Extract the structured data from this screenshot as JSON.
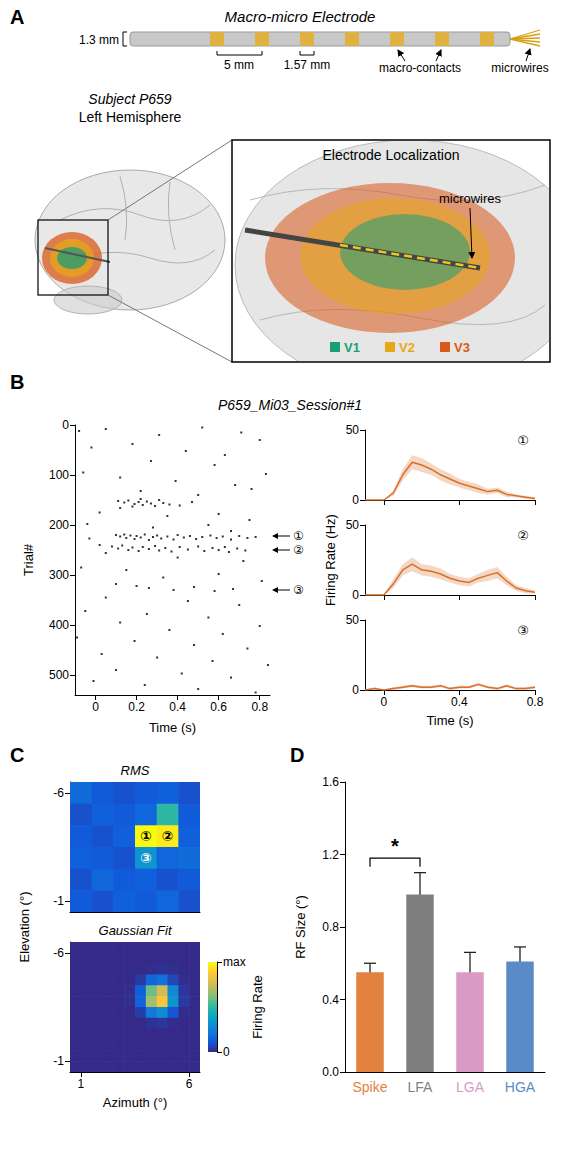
{
  "diagram": {
    "panel": "A",
    "electrode": {
      "title": "Macro-micro Electrode",
      "diameter": "1.3 mm",
      "spacing": "5 mm",
      "contact_length": "1.57 mm",
      "contacts_label": "macro-contacts",
      "tip_label": "microwires"
    },
    "brain": {
      "subject": "Subject P659",
      "hemisphere": "Left Hemisphere"
    },
    "localization": {
      "title": "Electrode Localization",
      "tip_label": "microwires",
      "areas": [
        {
          "name": "V1",
          "color": "#1b9e77"
        },
        {
          "name": "V2",
          "color": "#e6a817"
        },
        {
          "name": "V3",
          "color": "#d9581a"
        }
      ]
    }
  },
  "chart_data": [
    {
      "panel": "B",
      "type": "scatter",
      "title": "P659_Mi03_Session#1",
      "x_label": "Time (s)",
      "y_label": "Trial#",
      "xlim": [
        -0.1,
        0.85
      ],
      "xticks": [
        0,
        0.2,
        0.4,
        0.6,
        0.8
      ],
      "ylim": [
        0,
        540
      ],
      "yticks": [
        0,
        100,
        200,
        300,
        400,
        500
      ],
      "color": "#000000",
      "points": [
        [
          -0.08,
          12
        ],
        [
          0.05,
          8
        ],
        [
          0.31,
          20
        ],
        [
          0.52,
          5
        ],
        [
          0.71,
          15
        ],
        [
          0.8,
          30
        ],
        [
          -0.02,
          45
        ],
        [
          0.18,
          38
        ],
        [
          0.44,
          52
        ],
        [
          0.63,
          60
        ],
        [
          0.27,
          72
        ],
        [
          0.58,
          80
        ],
        [
          -0.06,
          95
        ],
        [
          0.12,
          105
        ],
        [
          0.39,
          112
        ],
        [
          0.68,
          120
        ],
        [
          0.83,
          98
        ],
        [
          0.22,
          132
        ],
        [
          0.5,
          140
        ],
        [
          0.76,
          128
        ],
        [
          0.11,
          152
        ],
        [
          0.14,
          155
        ],
        [
          0.16,
          151
        ],
        [
          0.19,
          158
        ],
        [
          0.21,
          154
        ],
        [
          0.23,
          160
        ],
        [
          0.25,
          153
        ],
        [
          0.27,
          157
        ],
        [
          0.29,
          162
        ],
        [
          0.31,
          150
        ],
        [
          0.33,
          156
        ],
        [
          0.18,
          163
        ],
        [
          0.22,
          148
        ],
        [
          0.36,
          159
        ],
        [
          0.41,
          161
        ],
        [
          0.12,
          166
        ],
        [
          0.47,
          154
        ],
        [
          0.02,
          175
        ],
        [
          0.35,
          182
        ],
        [
          0.6,
          178
        ],
        [
          0.75,
          190
        ],
        [
          -0.04,
          198
        ],
        [
          0.28,
          205
        ],
        [
          0.55,
          200
        ],
        [
          0.66,
          212
        ],
        [
          0.1,
          220
        ],
        [
          0.12,
          223
        ],
        [
          0.14,
          219
        ],
        [
          0.15,
          226
        ],
        [
          0.17,
          221
        ],
        [
          0.19,
          228
        ],
        [
          0.2,
          222
        ],
        [
          0.22,
          225
        ],
        [
          0.24,
          219
        ],
        [
          0.26,
          230
        ],
        [
          0.28,
          224
        ],
        [
          0.3,
          221
        ],
        [
          0.32,
          227
        ],
        [
          0.35,
          223
        ],
        [
          0.38,
          229
        ],
        [
          0.4,
          220
        ],
        [
          0.43,
          225
        ],
        [
          0.46,
          222
        ],
        [
          0.49,
          228
        ],
        [
          0.52,
          224
        ],
        [
          0.56,
          221
        ],
        [
          0.59,
          226
        ],
        [
          0.62,
          223
        ],
        [
          0.66,
          229
        ],
        [
          0.7,
          222
        ],
        [
          0.74,
          226
        ],
        [
          0.78,
          224
        ],
        [
          -0.03,
          227
        ],
        [
          0.08,
          243
        ],
        [
          0.11,
          247
        ],
        [
          0.13,
          241
        ],
        [
          0.16,
          250
        ],
        [
          0.18,
          245
        ],
        [
          0.21,
          252
        ],
        [
          0.23,
          244
        ],
        [
          0.26,
          248
        ],
        [
          0.29,
          242
        ],
        [
          0.31,
          251
        ],
        [
          0.34,
          246
        ],
        [
          0.37,
          253
        ],
        [
          0.41,
          244
        ],
        [
          0.45,
          249
        ],
        [
          0.5,
          243
        ],
        [
          0.53,
          252
        ],
        [
          0.57,
          246
        ],
        [
          0.6,
          250
        ],
        [
          0.63,
          244
        ],
        [
          0.65,
          254
        ],
        [
          0.69,
          247
        ],
        [
          0.73,
          251
        ],
        [
          0.05,
          256
        ],
        [
          0.02,
          240
        ],
        [
          0.4,
          265
        ],
        [
          0.72,
          272
        ],
        [
          -0.07,
          285
        ],
        [
          0.15,
          290
        ],
        [
          0.6,
          298
        ],
        [
          0.33,
          305
        ],
        [
          0.81,
          312
        ],
        [
          0.1,
          318
        ],
        [
          0.2,
          322
        ],
        [
          0.26,
          326
        ],
        [
          0.38,
          330
        ],
        [
          0.48,
          324
        ],
        [
          0.58,
          332
        ],
        [
          0.67,
          328
        ],
        [
          0.05,
          345
        ],
        [
          0.45,
          352
        ],
        [
          0.7,
          360
        ],
        [
          -0.05,
          372
        ],
        [
          0.25,
          378
        ],
        [
          0.55,
          385
        ],
        [
          0.12,
          395
        ],
        [
          0.8,
          402
        ],
        [
          0.36,
          410
        ],
        [
          0.62,
          418
        ],
        [
          -0.09,
          425
        ],
        [
          0.19,
          432
        ],
        [
          0.48,
          440
        ],
        [
          0.74,
          447
        ],
        [
          0.03,
          458
        ],
        [
          0.3,
          465
        ],
        [
          0.57,
          472
        ],
        [
          0.84,
          480
        ],
        [
          0.1,
          490
        ],
        [
          0.42,
          497
        ],
        [
          0.66,
          505
        ],
        [
          -0.01,
          512
        ],
        [
          0.24,
          520
        ],
        [
          0.5,
          528
        ],
        [
          0.78,
          535
        ]
      ],
      "annotations": [
        {
          "text": "①",
          "trial": 222
        },
        {
          "text": "②",
          "trial": 250
        },
        {
          "text": "③",
          "trial": 330
        }
      ]
    },
    {
      "type": "line",
      "title": "①",
      "y_label": "Firing Rate (Hz)",
      "color": "#d9702a",
      "x": [
        -0.1,
        -0.05,
        0,
        0.05,
        0.1,
        0.15,
        0.2,
        0.25,
        0.3,
        0.35,
        0.4,
        0.45,
        0.5,
        0.55,
        0.6,
        0.65,
        0.7,
        0.75,
        0.8
      ],
      "values": [
        0,
        0,
        0,
        5,
        18,
        27,
        25,
        22,
        18,
        15,
        12,
        10,
        8,
        6,
        7,
        4,
        3,
        2,
        1
      ],
      "sem": [
        0,
        0,
        0,
        2,
        4,
        5,
        5,
        4,
        4,
        4,
        3,
        3,
        3,
        2,
        2,
        2,
        1,
        1,
        1
      ],
      "xlim": [
        -0.1,
        0.8
      ],
      "xticks": [
        0,
        0.4,
        0.8
      ],
      "ylim": [
        0,
        50
      ],
      "yticks": [
        0,
        50
      ],
      "tick_labels": "y"
    },
    {
      "type": "line",
      "title": "②",
      "color": "#d9702a",
      "x": [
        -0.1,
        -0.05,
        0,
        0.05,
        0.1,
        0.15,
        0.2,
        0.25,
        0.3,
        0.35,
        0.4,
        0.45,
        0.5,
        0.55,
        0.6,
        0.65,
        0.7,
        0.75,
        0.8
      ],
      "values": [
        0,
        0,
        0,
        8,
        18,
        22,
        18,
        17,
        15,
        12,
        10,
        9,
        12,
        14,
        16,
        10,
        5,
        3,
        2
      ],
      "sem": [
        0,
        0,
        0,
        3,
        4,
        5,
        4,
        4,
        4,
        3,
        3,
        3,
        3,
        4,
        4,
        3,
        2,
        2,
        1
      ],
      "xlim": [
        -0.1,
        0.8
      ],
      "xticks": [
        0,
        0.4,
        0.8
      ],
      "ylim": [
        0,
        50
      ],
      "yticks": [
        0,
        50
      ],
      "tick_labels": "y"
    },
    {
      "type": "line",
      "title": "③",
      "x_label": "Time (s)",
      "color": "#d9702a",
      "x": [
        -0.1,
        -0.05,
        0,
        0.05,
        0.1,
        0.15,
        0.2,
        0.25,
        0.3,
        0.35,
        0.4,
        0.45,
        0.5,
        0.55,
        0.6,
        0.65,
        0.7,
        0.75,
        0.8
      ],
      "values": [
        0,
        1,
        0,
        1,
        2,
        3,
        2,
        2,
        3,
        1,
        2,
        2,
        4,
        2,
        1,
        3,
        1,
        1,
        2
      ],
      "sem": [
        0,
        1,
        0,
        1,
        1,
        1,
        1,
        1,
        1,
        1,
        1,
        1,
        1,
        1,
        1,
        1,
        1,
        1,
        1
      ],
      "xlim": [
        -0.1,
        0.8
      ],
      "xticks": [
        0,
        0.4,
        0.8
      ],
      "ylim": [
        0,
        50
      ],
      "yticks": [
        0,
        50
      ]
    },
    {
      "panel": "C",
      "type": "heatmap",
      "title": "RMS",
      "y_label": "Elevation (°)",
      "x": [
        1,
        2,
        3,
        4,
        5,
        6
      ],
      "y": [
        -6,
        -5,
        -4,
        -3,
        -2,
        -1
      ],
      "values": [
        [
          0.18,
          0.12,
          0.1,
          0.12,
          0.14,
          0.1
        ],
        [
          0.1,
          0.14,
          0.12,
          0.16,
          0.5,
          0.12
        ],
        [
          0.12,
          0.1,
          0.14,
          1.0,
          0.96,
          0.14
        ],
        [
          0.14,
          0.12,
          0.1,
          0.32,
          0.16,
          0.18
        ],
        [
          0.1,
          0.16,
          0.12,
          0.14,
          0.1,
          0.12
        ],
        [
          0.12,
          0.1,
          0.14,
          0.12,
          0.16,
          0.1
        ]
      ],
      "value_range": [
        0,
        1
      ],
      "xlim": [
        0.5,
        6.5
      ],
      "ylim": [
        -6.5,
        -0.5
      ],
      "yticks": [
        -6,
        -1
      ],
      "tick_labels": "y",
      "annotations": [
        {
          "text": "①",
          "x": 4,
          "y": -4
        },
        {
          "text": "②",
          "x": 5,
          "y": -4
        },
        {
          "text": "③",
          "x": 4,
          "y": -3
        }
      ]
    },
    {
      "type": "heatmap",
      "title": "Gaussian Fit",
      "x_label": "Azimuth (°)",
      "x": [
        0.75,
        1.25,
        1.75,
        2.25,
        2.75,
        3.25,
        3.75,
        4.25,
        4.75,
        5.25,
        5.75,
        6.25
      ],
      "y": [
        -6.25,
        -5.75,
        -5.25,
        -4.75,
        -4.25,
        -3.75,
        -3.25,
        -2.75,
        -2.25,
        -1.75,
        -1.25,
        -0.75
      ],
      "values": [
        [
          0,
          0,
          0,
          0,
          0,
          0,
          0,
          0,
          0,
          0,
          0,
          0
        ],
        [
          0,
          0,
          0,
          0,
          0,
          0,
          0,
          0,
          0,
          0,
          0,
          0
        ],
        [
          0,
          0,
          0,
          0,
          0,
          0,
          0,
          0.01,
          0.02,
          0.01,
          0,
          0
        ],
        [
          0,
          0,
          0,
          0,
          0,
          0,
          0.04,
          0.16,
          0.2,
          0.07,
          0.01,
          0
        ],
        [
          0,
          0,
          0,
          0,
          0,
          0.01,
          0.14,
          0.59,
          0.76,
          0.28,
          0.03,
          0
        ],
        [
          0,
          0,
          0,
          0,
          0,
          0.01,
          0.15,
          0.67,
          0.86,
          0.32,
          0.04,
          0
        ],
        [
          0,
          0,
          0,
          0,
          0,
          0,
          0.05,
          0.22,
          0.29,
          0.11,
          0.01,
          0
        ],
        [
          0,
          0,
          0,
          0,
          0,
          0,
          0,
          0.02,
          0.03,
          0.01,
          0,
          0
        ],
        [
          0,
          0,
          0,
          0,
          0,
          0,
          0,
          0,
          0,
          0,
          0,
          0
        ],
        [
          0,
          0,
          0,
          0,
          0,
          0,
          0,
          0,
          0,
          0,
          0,
          0
        ],
        [
          0,
          0,
          0,
          0,
          0,
          0,
          0,
          0,
          0,
          0,
          0,
          0
        ],
        [
          0,
          0,
          0,
          0,
          0,
          0,
          0,
          0,
          0,
          0,
          0,
          0
        ]
      ],
      "xlim": [
        0.5,
        6.5
      ],
      "ylim": [
        -6.5,
        -0.5
      ],
      "xticks": [
        1,
        6
      ],
      "yticks": [
        -6,
        -1
      ],
      "colorbar": {
        "label": "Firing Rate",
        "range": [
          0,
          1
        ],
        "ticks": [
          0,
          {
            "value": 1,
            "label": "max"
          }
        ]
      }
    },
    {
      "panel": "D",
      "type": "bar",
      "y_label": "RF Size (°)",
      "categories": [
        "Spike",
        "LFA",
        "LGA",
        "HGA"
      ],
      "values": [
        0.55,
        0.98,
        0.55,
        0.61
      ],
      "errors": [
        0.05,
        0.12,
        0.11,
        0.08
      ],
      "colors": [
        "#e3813e",
        "#7f7f7f",
        "#d99ac3",
        "#5b8bc6"
      ],
      "ylim": [
        0,
        1.6
      ],
      "yticks": [
        {
          "value": 0,
          "label": "0.0"
        },
        0.4,
        0.8,
        1.2,
        1.6
      ],
      "significance": [
        {
          "between": [
            "Spike",
            "LFA"
          ],
          "label": "*"
        }
      ]
    }
  ]
}
